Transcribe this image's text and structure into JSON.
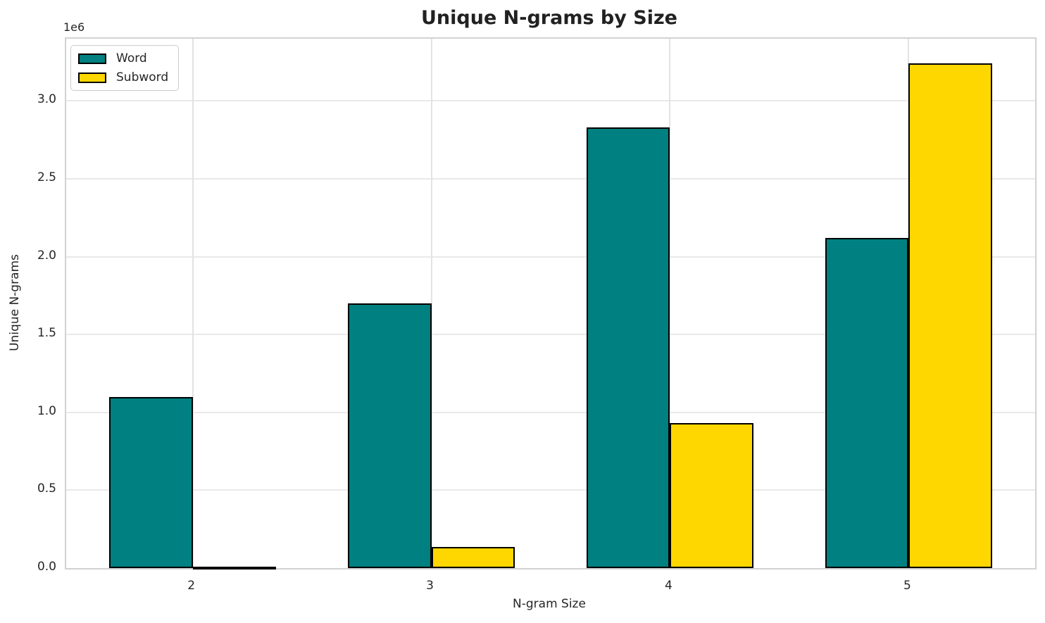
{
  "chart_data": {
    "type": "bar",
    "title": "Unique N-grams by Size",
    "xlabel": "N-gram Size",
    "ylabel": "Unique N-grams",
    "y_offset_text": "1e6",
    "categories": [
      "2",
      "3",
      "4",
      "5"
    ],
    "series": [
      {
        "name": "Word",
        "color": "#008080",
        "values": [
          1100000,
          1700000,
          2830000,
          2120000
        ]
      },
      {
        "name": "Subword",
        "color": "#FFD700",
        "values": [
          10000,
          135000,
          930000,
          3240000
        ]
      }
    ],
    "bar_edgecolor": "#000000",
    "bar_width_fraction": 0.35,
    "xlim": [
      1.47,
      5.53
    ],
    "ylim": [
      0,
      3400000
    ],
    "yticks": [
      0,
      500000,
      1000000,
      1500000,
      2000000,
      2500000,
      3000000
    ],
    "ytick_labels": [
      "0.0",
      "0.5",
      "1.0",
      "1.5",
      "2.0",
      "2.5",
      "3.0"
    ],
    "grid": true,
    "legend_position": "upper left"
  }
}
